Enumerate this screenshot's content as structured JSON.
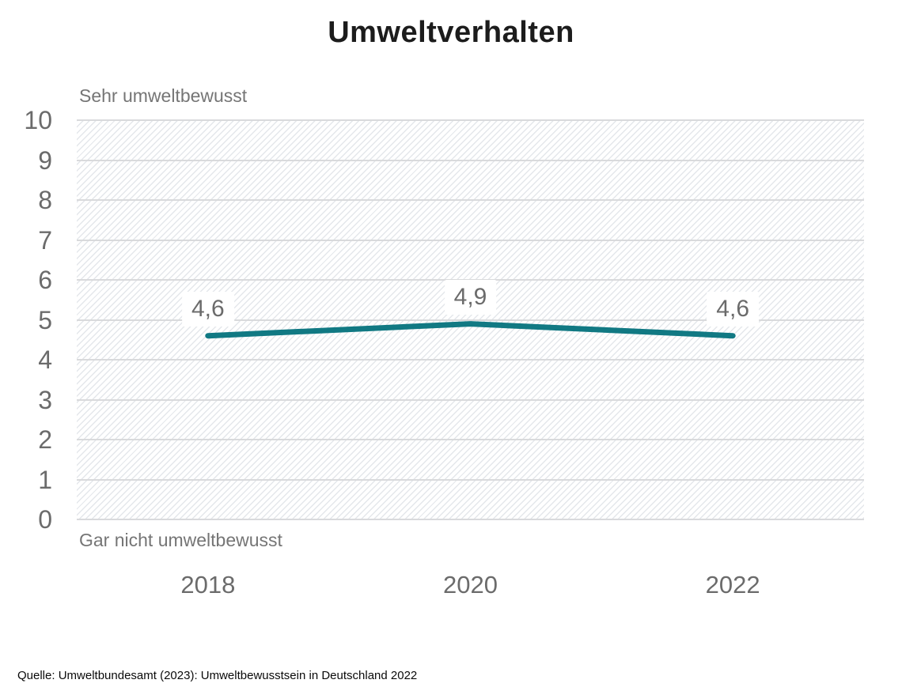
{
  "title": "Umweltverhalten",
  "source": "Quelle: Umweltbundesamt (2023): Umweltbewusstsein in Deutschland 2022",
  "chart_data": {
    "type": "line",
    "title": "Umweltverhalten",
    "categories": [
      "2018",
      "2020",
      "2022"
    ],
    "series": [
      {
        "name": "Umweltverhalten",
        "values": [
          4.6,
          4.9,
          4.6
        ]
      }
    ],
    "value_labels": [
      "4,6",
      "4,9",
      "4,6"
    ],
    "y_ticks": [
      0,
      1,
      2,
      3,
      4,
      5,
      6,
      7,
      8,
      9,
      10
    ],
    "ylim": [
      0,
      10
    ],
    "y_axis_top_label": "Sehr umweltbewusst",
    "y_axis_bottom_label": "Gar nicht umweltbewusst",
    "grid": true,
    "legend": "none",
    "colors": {
      "line": "#117983",
      "grid": "#d9dadc",
      "tick_text": "#6b6b6b",
      "axis_label_text": "#757575",
      "value_label_bg": "#ffffff",
      "hatch": "#e4e7eb"
    }
  }
}
